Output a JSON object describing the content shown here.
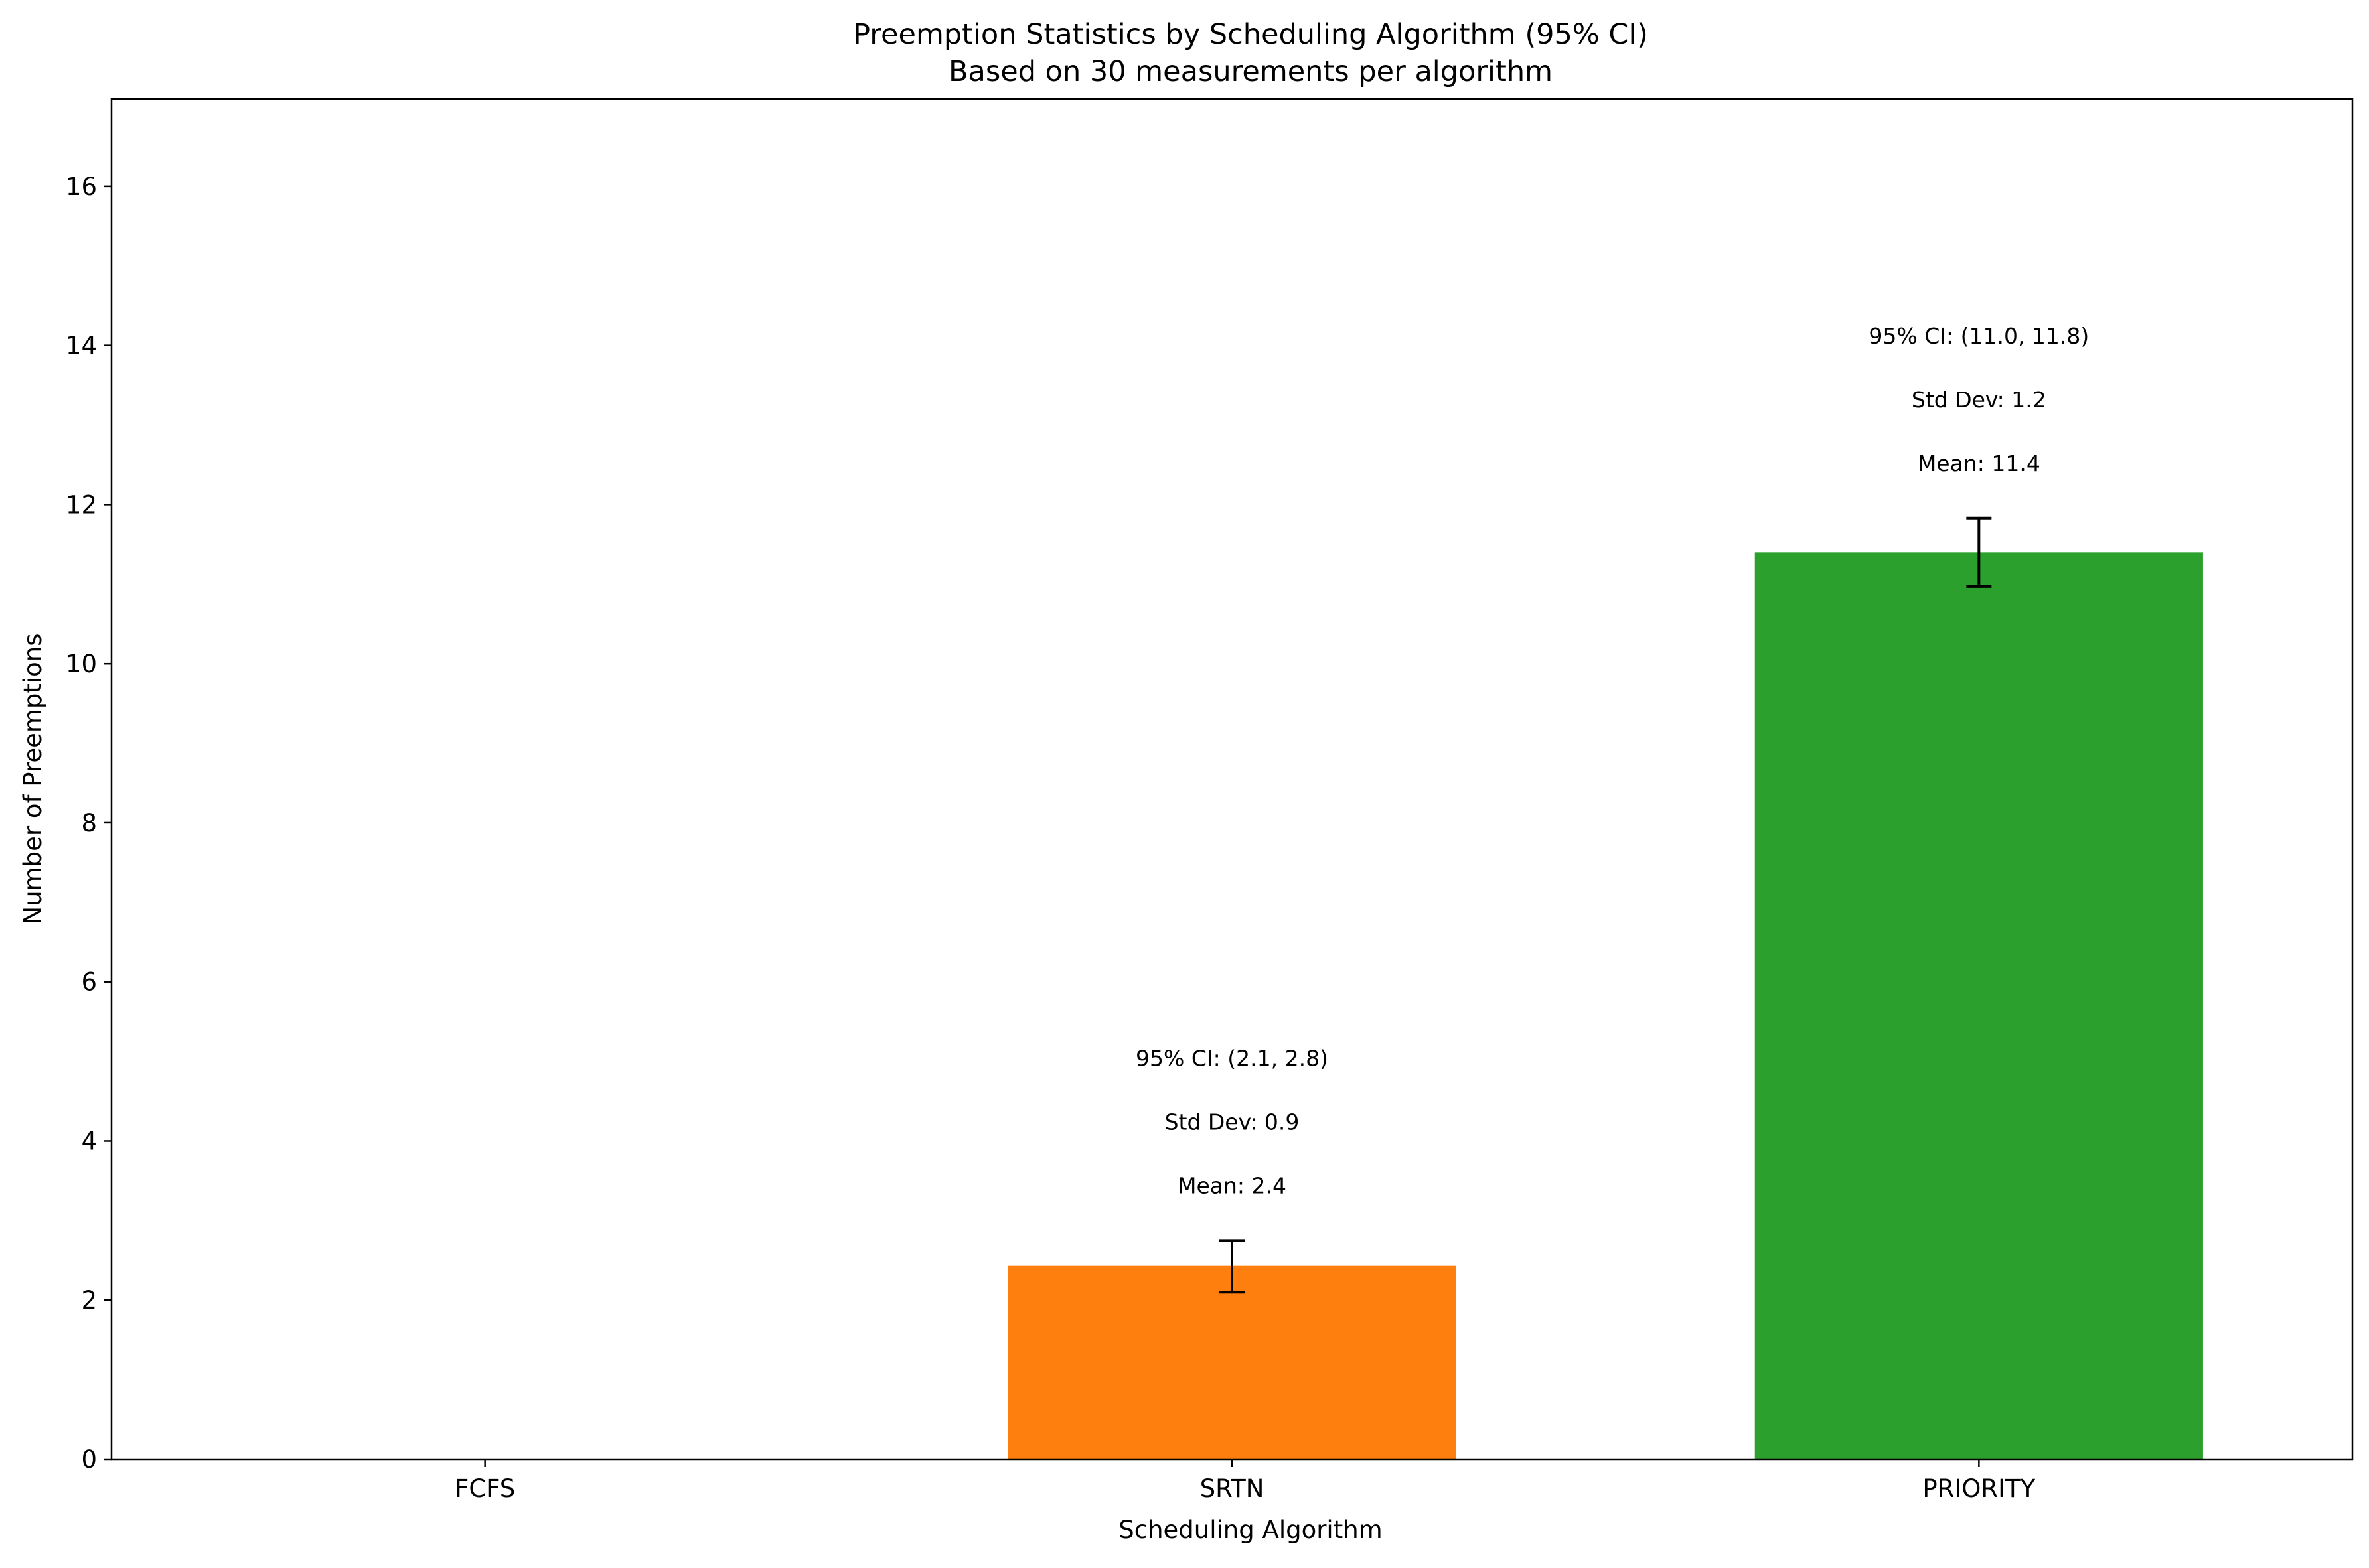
{
  "chart_data": {
    "type": "bar",
    "title": "Preemption Statistics by Scheduling Algorithm (95% CI)",
    "subtitle": "Based on 30 measurements per algorithm",
    "xlabel": "Scheduling Algorithm",
    "ylabel": "Number of Preemptions",
    "categories": [
      "FCFS",
      "SRTN",
      "PRIORITY"
    ],
    "values": [
      0,
      2.43,
      11.4
    ],
    "error_bars": [
      {
        "low": 0,
        "high": 0
      },
      {
        "low": 2.1,
        "high": 2.75
      },
      {
        "low": 10.97,
        "high": 11.83
      }
    ],
    "colors": [
      "#1f77b4",
      "#ff7f0e",
      "#2ca02c"
    ],
    "annotations": [
      {
        "category": "FCFS",
        "lines": []
      },
      {
        "category": "SRTN",
        "lines": [
          "Mean: 2.4",
          "Std Dev: 0.9",
          "95% CI: (2.1, 2.8)"
        ]
      },
      {
        "category": "PRIORITY",
        "lines": [
          "Mean: 11.4",
          "Std Dev: 1.2",
          "95% CI: (11.0, 11.8)"
        ]
      }
    ],
    "ylim": [
      0,
      17.1
    ],
    "yticks": [
      0,
      2,
      4,
      6,
      8,
      10,
      12,
      14,
      16
    ],
    "grid": false,
    "legend": false
  }
}
